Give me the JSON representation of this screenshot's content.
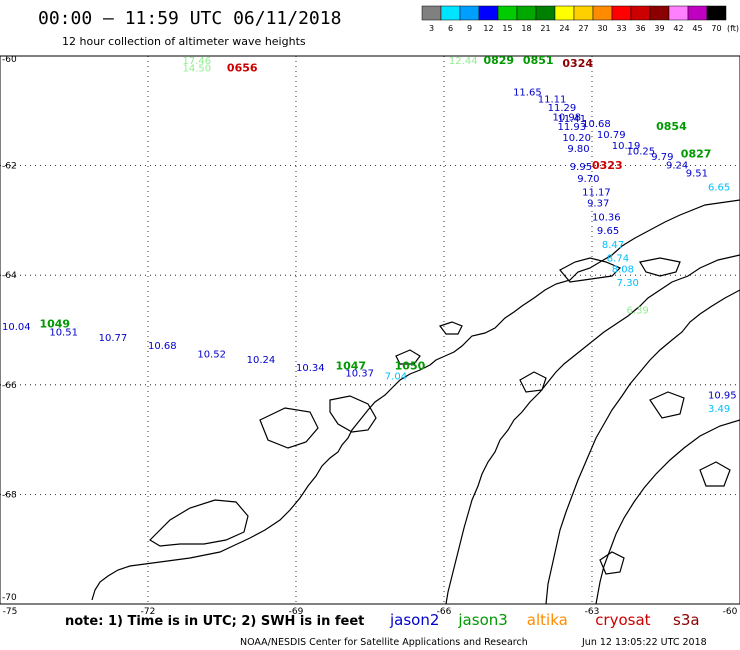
{
  "header": {
    "title": "00:00 – 11:59 UTC 06/11/2018",
    "subtitle": "12 hour collection of altimeter wave heights"
  },
  "legend": {
    "unit": "(ft)",
    "bins": [
      {
        "label": "3",
        "color": "#808080"
      },
      {
        "label": "6",
        "color": "#00e5ff"
      },
      {
        "label": "9",
        "color": "#009fff"
      },
      {
        "label": "12",
        "color": "#0000ff"
      },
      {
        "label": "15",
        "color": "#00cc00"
      },
      {
        "label": "18",
        "color": "#00a800"
      },
      {
        "label": "21",
        "color": "#008000"
      },
      {
        "label": "24",
        "color": "#ffff00"
      },
      {
        "label": "27",
        "color": "#ffd000"
      },
      {
        "label": "30",
        "color": "#ff8c00"
      },
      {
        "label": "33",
        "color": "#ff0000"
      },
      {
        "label": "36",
        "color": "#cc0000"
      },
      {
        "label": "39",
        "color": "#8b0000"
      },
      {
        "label": "42",
        "color": "#ff80ff"
      },
      {
        "label": "45",
        "color": "#c000c0"
      },
      {
        "label": "70",
        "color": "#000000"
      }
    ]
  },
  "axes": {
    "lat_ticks": [
      {
        "value": -60,
        "label": "-60"
      },
      {
        "value": -62,
        "label": "-62"
      },
      {
        "value": -64,
        "label": "-64"
      },
      {
        "value": -66,
        "label": "-66"
      },
      {
        "value": -68,
        "label": "-68"
      },
      {
        "value": -70,
        "label": "-70"
      }
    ],
    "lon_ticks": [
      {
        "value": -75,
        "label": "-75"
      },
      {
        "value": -72,
        "label": "-72"
      },
      {
        "value": -69,
        "label": "-69"
      },
      {
        "value": -66,
        "label": "-66"
      },
      {
        "value": -63,
        "label": "-63"
      },
      {
        "value": -60,
        "label": "-60"
      }
    ],
    "lon_range": [
      -75,
      -60
    ],
    "lat_range": [
      -70,
      -60
    ]
  },
  "colors": {
    "jason2": "#0000cc",
    "jason3": "#009900",
    "altika": "#ff8c00",
    "cryosat": "#cc0000",
    "s3a": "#8b0000",
    "altika_light": "#90ee90",
    "cyan": "#00bfff"
  },
  "tracks": [
    {
      "name": "track-a",
      "items": [
        {
          "lon": -64.6,
          "lat": -60.72,
          "text": "11.65",
          "c": "jason2"
        },
        {
          "lon": -64.1,
          "lat": -60.85,
          "text": "11.11",
          "c": "jason2"
        },
        {
          "lon": -63.9,
          "lat": -61.0,
          "text": "11.29",
          "c": "jason2"
        },
        {
          "lon": -63.8,
          "lat": -61.18,
          "text": "10.98",
          "c": "jason2"
        },
        {
          "lon": -63.7,
          "lat": -61.35,
          "text": "11.93",
          "c": "jason2"
        },
        {
          "lon": -63.6,
          "lat": -61.55,
          "text": "10.20",
          "c": "jason2"
        },
        {
          "lon": -63.5,
          "lat": -61.75,
          "text": "9.80",
          "c": "jason2"
        },
        {
          "lon": -63.45,
          "lat": -62.08,
          "text": "9.95",
          "c": "jason2"
        },
        {
          "lon": -63.3,
          "lat": -62.3,
          "text": "9.70",
          "c": "jason2"
        },
        {
          "lon": -63.2,
          "lat": -62.55,
          "text": "11.17",
          "c": "jason2"
        },
        {
          "lon": -63.1,
          "lat": -62.75,
          "text": "9.37",
          "c": "jason2"
        },
        {
          "lon": -63.0,
          "lat": -63.0,
          "text": "10.36",
          "c": "jason2"
        },
        {
          "lon": -62.9,
          "lat": -63.25,
          "text": "9.65",
          "c": "jason2"
        },
        {
          "lon": -62.8,
          "lat": -63.5,
          "text": "8.47",
          "c": "cyan"
        },
        {
          "lon": -62.7,
          "lat": -63.75,
          "text": "8.74",
          "c": "cyan"
        },
        {
          "lon": -62.6,
          "lat": -63.95,
          "text": "8.08",
          "c": "cyan"
        },
        {
          "lon": -62.5,
          "lat": -64.2,
          "text": "7.30",
          "c": "cyan"
        },
        {
          "lon": -62.3,
          "lat": -64.7,
          "text": "6.39",
          "c": "altika_light"
        }
      ]
    },
    {
      "name": "track-b",
      "items": [
        {
          "lon": -63.7,
          "lat": -61.2,
          "text": "11.41",
          "c": "jason2"
        },
        {
          "lon": -63.2,
          "lat": -61.3,
          "text": "10.68",
          "c": "jason2"
        },
        {
          "lon": -62.9,
          "lat": -61.5,
          "text": "10.79",
          "c": "jason2"
        },
        {
          "lon": -62.6,
          "lat": -61.7,
          "text": "10.19",
          "c": "jason2"
        },
        {
          "lon": -62.3,
          "lat": -61.8,
          "text": "10.25",
          "c": "jason2"
        },
        {
          "lon": -61.8,
          "lat": -61.9,
          "text": "9.79",
          "c": "jason2"
        },
        {
          "lon": -61.5,
          "lat": -62.05,
          "text": "9.24",
          "c": "jason2"
        },
        {
          "lon": -61.1,
          "lat": -62.2,
          "text": "9.51",
          "c": "jason2"
        },
        {
          "lon": -60.5,
          "lat": -62.45,
          "text": "6.65",
          "c": "cyan"
        }
      ]
    },
    {
      "name": "track-c",
      "items": [
        {
          "lon": -75.0,
          "lat": -65.0,
          "text": "10.04",
          "c": "jason2"
        },
        {
          "lon": -74.0,
          "lat": -65.1,
          "text": "10.51",
          "c": "jason2"
        },
        {
          "lon": -73.0,
          "lat": -65.2,
          "text": "10.77",
          "c": "jason2"
        },
        {
          "lon": -72.0,
          "lat": -65.35,
          "text": "10.68",
          "c": "jason2"
        },
        {
          "lon": -71.0,
          "lat": -65.5,
          "text": "10.52",
          "c": "jason2"
        },
        {
          "lon": -70.0,
          "lat": -65.6,
          "text": "10.24",
          "c": "jason2"
        },
        {
          "lon": -69.0,
          "lat": -65.75,
          "text": "10.34",
          "c": "jason2"
        },
        {
          "lon": -68.0,
          "lat": -65.85,
          "text": "10.37",
          "c": "jason2"
        },
        {
          "lon": -67.2,
          "lat": -65.9,
          "text": "7.04",
          "c": "cyan"
        },
        {
          "lon": -60.5,
          "lat": -66.25,
          "text": "10.95",
          "c": "jason2"
        },
        {
          "lon": -60.3,
          "lat": -66.5,
          "text": "3.49",
          "c": "cyan"
        }
      ]
    },
    {
      "name": "time-tags",
      "items": [
        {
          "lon": -71.3,
          "lat": -60.1,
          "text": "17.46",
          "c": "altika_light"
        },
        {
          "lon": -71.3,
          "lat": -60.28,
          "text": "14.50",
          "c": "altika_light"
        },
        {
          "lon": -70.4,
          "lat": -60.28,
          "text": "0656",
          "c": "cryosat"
        },
        {
          "lon": -65.9,
          "lat": -60.0,
          "text": "12.44",
          "c": "altika_light"
        },
        {
          "lon": -65.2,
          "lat": -59.98,
          "text": "0829",
          "c": "jason3"
        },
        {
          "lon": -64.4,
          "lat": -60.0,
          "text": "0851",
          "c": "jason3"
        },
        {
          "lon": -63.6,
          "lat": -60.2,
          "text": "0324",
          "c": "s3a"
        },
        {
          "lon": -63.0,
          "lat": -62.06,
          "text": "0323",
          "c": "cryosat"
        },
        {
          "lon": -61.7,
          "lat": -61.35,
          "text": "0854",
          "c": "jason3"
        },
        {
          "lon": -61.2,
          "lat": -61.85,
          "text": "0827",
          "c": "jason3"
        },
        {
          "lon": -74.2,
          "lat": -64.95,
          "text": "1049",
          "c": "jason3"
        },
        {
          "lon": -68.2,
          "lat": -65.72,
          "text": "1047",
          "c": "jason3"
        },
        {
          "lon": -67.0,
          "lat": -65.72,
          "text": "1050",
          "c": "jason3"
        }
      ]
    }
  ],
  "footer": {
    "note": "note: 1) Time is in UTC; 2) SWH is in feet",
    "satellites": [
      {
        "label": "jason2",
        "c": "jason2"
      },
      {
        "label": "jason3",
        "c": "jason3"
      },
      {
        "label": "altika",
        "c": "altika"
      },
      {
        "label": "cryosat",
        "c": "cryosat"
      },
      {
        "label": "s3a",
        "c": "s3a"
      }
    ],
    "credit": "NOAA/NESDIS Center for Satellite Applications and Research",
    "timestamp": "Jun 12 13:05:22 UTC 2018"
  }
}
